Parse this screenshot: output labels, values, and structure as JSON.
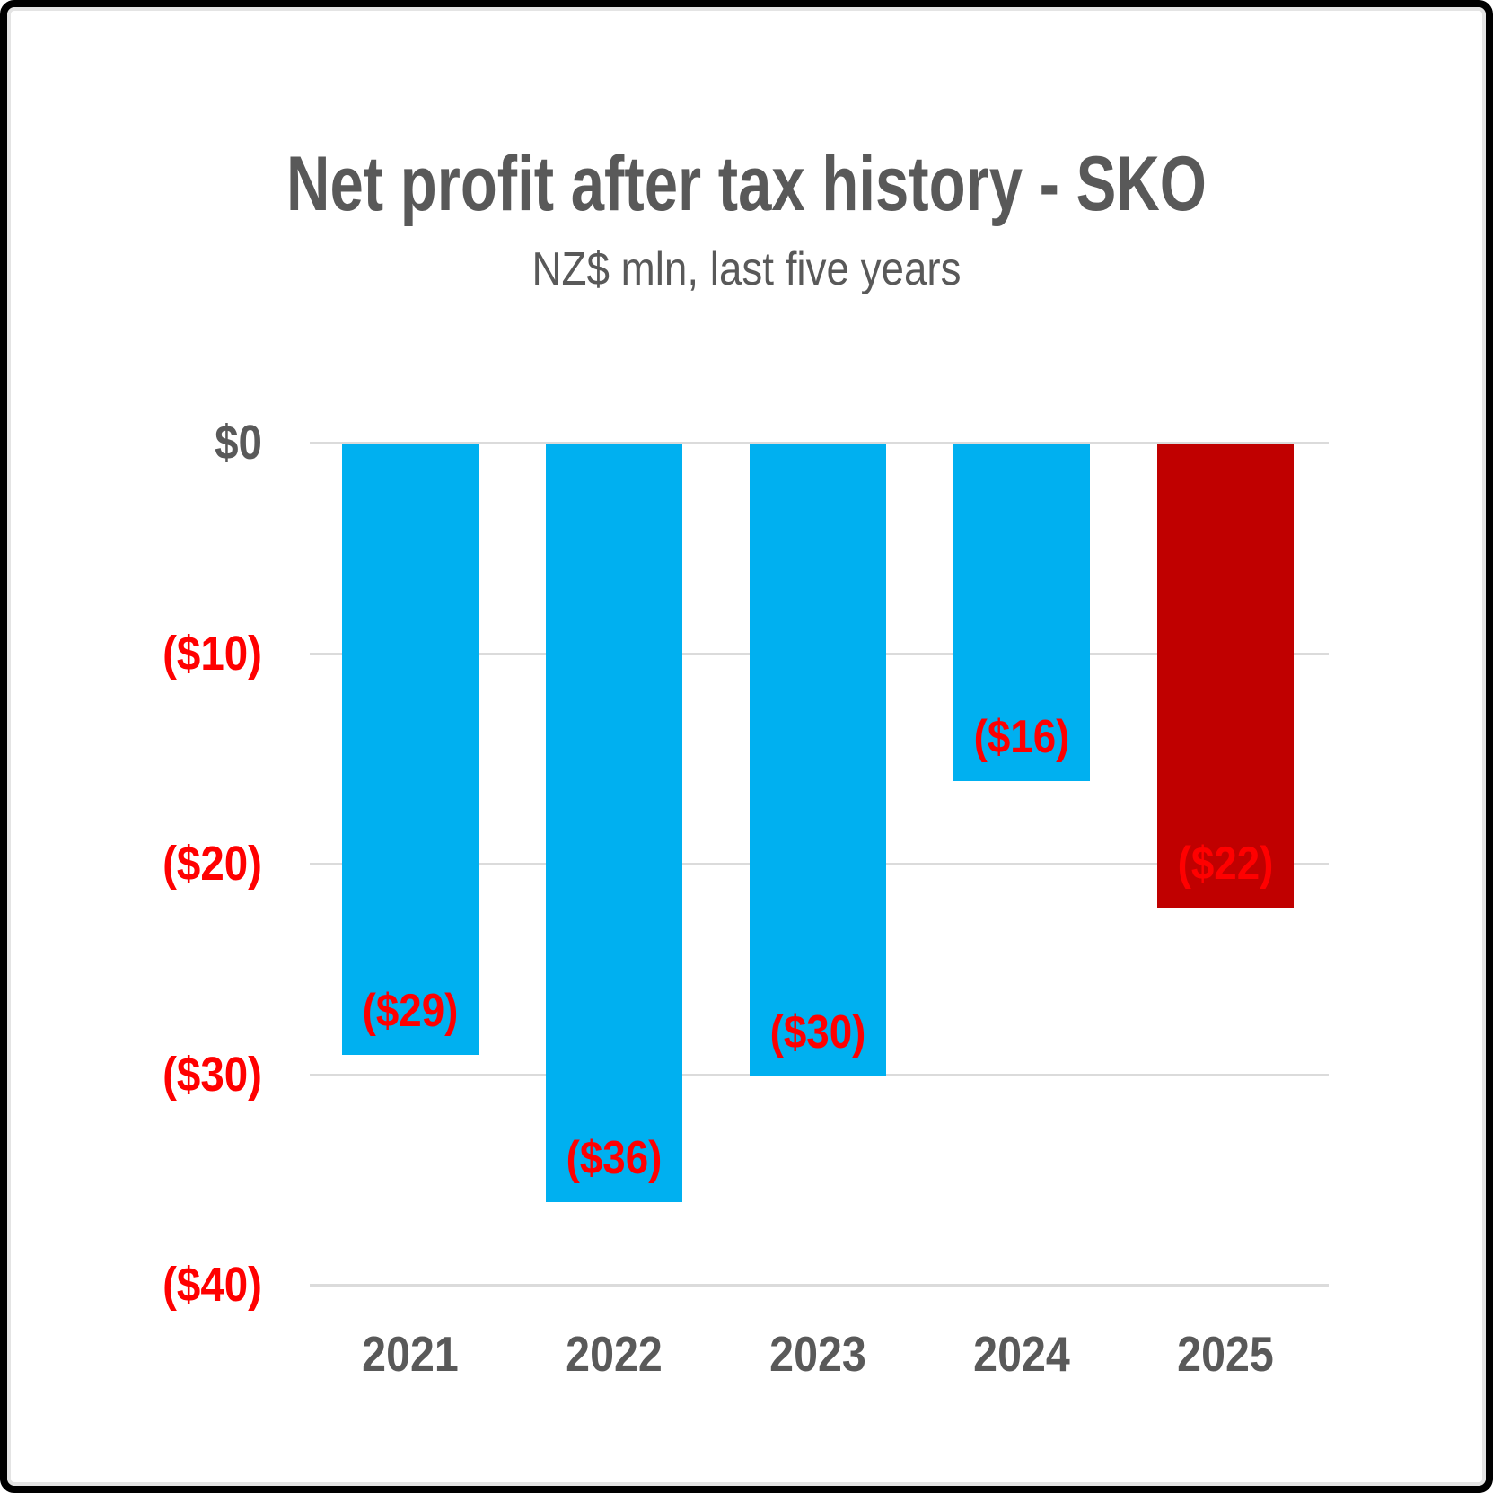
{
  "chart_data": {
    "type": "bar",
    "title": "Net profit after tax history - SKO",
    "subtitle": "NZ$ mln, last five years",
    "categories": [
      "2021",
      "2022",
      "2023",
      "2024",
      "2025"
    ],
    "values": [
      -29,
      -36,
      -30,
      -16,
      -22
    ],
    "bar_labels": [
      "($29)",
      "($36)",
      "($30)",
      "($16)",
      "($22)"
    ],
    "bar_colors": [
      "#00B0F0",
      "#00B0F0",
      "#00B0F0",
      "#00B0F0",
      "#C00000"
    ],
    "yticks": [
      {
        "label": "$0",
        "value": 0
      },
      {
        "label": "($10)",
        "value": -10
      },
      {
        "label": "($20)",
        "value": -20
      },
      {
        "label": "($30)",
        "value": -30
      },
      {
        "label": "($40)",
        "value": -40
      }
    ],
    "ylim": [
      -40,
      0
    ],
    "xlabel": "",
    "ylabel": "",
    "grid": "horizontal",
    "legend": "none",
    "colors": {
      "positive_tick_text": "#595959",
      "negative_tick_text": "#FF0000",
      "bar_value_text": "#FF0000",
      "title_text": "#595959",
      "axis_category_text": "#595959",
      "gridline": "#DBDBDB",
      "frame_border": "#000000",
      "background": "#FFFFFF"
    }
  }
}
